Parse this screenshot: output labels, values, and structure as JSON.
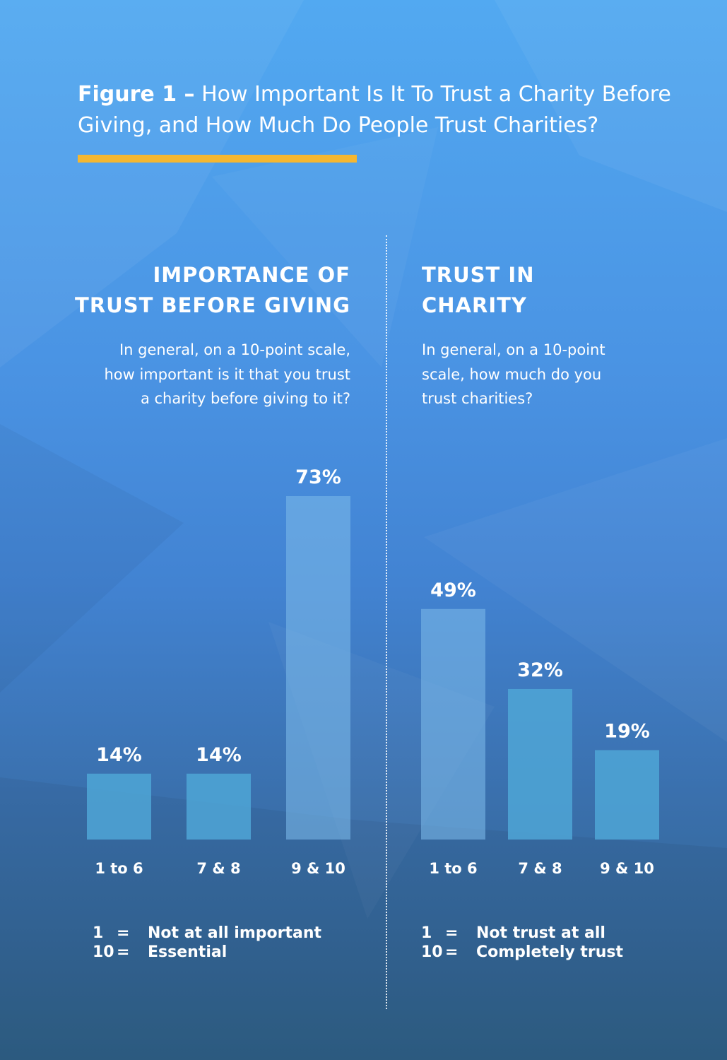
{
  "title": {
    "figure_label": "Figure 1 –",
    "text": "How Important Is It To Trust a Charity Before Giving, and How Much Do People Trust Charities?"
  },
  "colors": {
    "accent": "#f5b731",
    "bar_light": "#4fa6d6",
    "bar_highlight": "#7ab8e8"
  },
  "left_panel": {
    "heading_lines": [
      "IMPORTANCE OF",
      "TRUST BEFORE GIVING"
    ],
    "question_lines": [
      "In general, on a 10-point scale,",
      "how important is it that you trust",
      "a charity before giving to it?"
    ],
    "legend": [
      {
        "key": "1",
        "eq": "=",
        "label": "Not at all important"
      },
      {
        "key": "10",
        "eq": "=",
        "label": "Essential"
      }
    ]
  },
  "right_panel": {
    "heading_lines": [
      "TRUST IN",
      "CHARITY"
    ],
    "question_lines": [
      "In general, on a 10-point",
      "scale, how much do you",
      "trust charities?"
    ],
    "legend": [
      {
        "key": "1",
        "eq": "=",
        "label": "Not trust at all"
      },
      {
        "key": "10",
        "eq": "=",
        "label": "Completely trust"
      }
    ]
  },
  "chart_data": [
    {
      "type": "bar",
      "title": "IMPORTANCE OF TRUST BEFORE GIVING",
      "categories": [
        "1 to 6",
        "7 & 8",
        "9 & 10"
      ],
      "values": [
        14,
        14,
        73
      ],
      "labels": [
        "14%",
        "14%",
        "73%"
      ],
      "unit": "%",
      "ylim": [
        0,
        73
      ],
      "grid": false
    },
    {
      "type": "bar",
      "title": "TRUST IN CHARITY",
      "categories": [
        "1 to 6",
        "7 & 8",
        "9 & 10"
      ],
      "values": [
        49,
        32,
        19
      ],
      "labels": [
        "49%",
        "32%",
        "19%"
      ],
      "unit": "%",
      "ylim": [
        0,
        73
      ],
      "grid": false
    }
  ]
}
